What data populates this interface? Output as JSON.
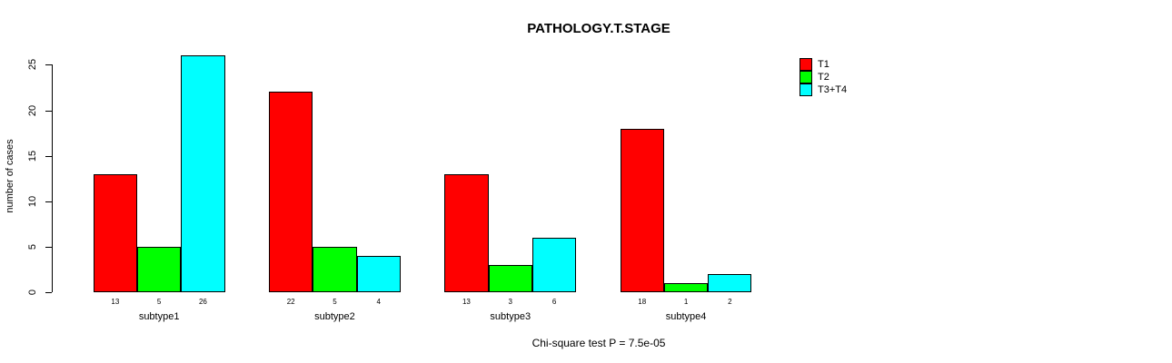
{
  "title": "PATHOLOGY.T.STAGE",
  "footnote": "Chi-square test P = 7.5e-05",
  "chart_data": {
    "type": "bar",
    "title": "PATHOLOGY.T.STAGE",
    "xlabel": "",
    "ylabel": "number of cases",
    "categories": [
      "subtype1",
      "subtype2",
      "subtype3",
      "subtype4"
    ],
    "series": [
      {
        "name": "T1",
        "color": "#ff0000",
        "values": [
          13,
          22,
          13,
          18
        ]
      },
      {
        "name": "T2",
        "color": "#00ff00",
        "values": [
          5,
          5,
          3,
          1
        ]
      },
      {
        "name": "T3+T4",
        "color": "#00ffff",
        "values": [
          26,
          4,
          6,
          2
        ]
      }
    ],
    "bar_value_labels": [
      [
        "13",
        "5",
        "26"
      ],
      [
        "22",
        "5",
        "4"
      ],
      [
        "13",
        "3",
        "6"
      ],
      [
        "18",
        "1",
        "2"
      ]
    ],
    "yticks": [
      0,
      5,
      10,
      15,
      20,
      25
    ],
    "ylim": [
      0,
      26
    ],
    "grid": false,
    "legend_position": "top-right",
    "annotation": "Chi-square test P = 7.5e-05"
  },
  "colors": {
    "background": "#ffffff",
    "axis": "#000000",
    "text": "#000000",
    "bar_border": "#000000"
  }
}
